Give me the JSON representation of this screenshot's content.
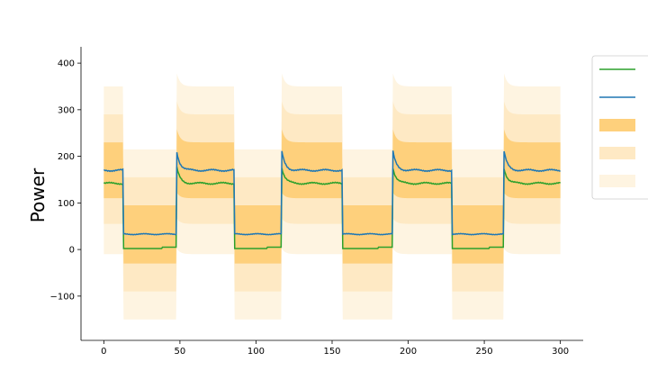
{
  "chart_data": {
    "type": "line",
    "title": "",
    "xlabel": "",
    "ylabel": "Power",
    "xlim": [
      -15,
      315
    ],
    "ylim": [
      -195,
      435
    ],
    "xticks": [
      0,
      50,
      100,
      150,
      200,
      250,
      300
    ],
    "yticks": [
      -100,
      0,
      100,
      200,
      300,
      400
    ],
    "grid": false,
    "legend": {
      "placement": "right",
      "entries": [
        {
          "kind": "line",
          "color": "#2ca02c",
          "label": ""
        },
        {
          "kind": "line",
          "color": "#1f77b4",
          "label": ""
        },
        {
          "kind": "band",
          "color": "#fed07c",
          "label": ""
        },
        {
          "kind": "band",
          "color": "#fee9c4",
          "label": ""
        },
        {
          "kind": "band",
          "color": "#fef4e1",
          "label": ""
        }
      ]
    },
    "x_domain": [
      0,
      300
    ],
    "segments": [
      {
        "x_start": 0,
        "x_end": 13,
        "state": "high"
      },
      {
        "x_start": 13,
        "x_end": 48,
        "state": "low"
      },
      {
        "x_start": 48,
        "x_end": 86,
        "state": "high"
      },
      {
        "x_start": 86,
        "x_end": 117,
        "state": "low"
      },
      {
        "x_start": 117,
        "x_end": 157,
        "state": "high"
      },
      {
        "x_start": 157,
        "x_end": 190,
        "state": "low"
      },
      {
        "x_start": 190,
        "x_end": 229,
        "state": "high"
      },
      {
        "x_start": 229,
        "x_end": 263,
        "state": "low"
      },
      {
        "x_start": 263,
        "x_end": 300,
        "state": "high"
      }
    ],
    "series": [
      {
        "color": "#2ca02c",
        "high_level": 142,
        "high_peak": 175,
        "low_level": 2
      },
      {
        "color": "#1f77b4",
        "high_level": 170,
        "high_peak": 210,
        "low_level": 33
      }
    ],
    "bands": [
      {
        "color": "#fef4e1",
        "high_upper": 350,
        "high_lower": -10,
        "low_upper": 215,
        "low_lower": -150
      },
      {
        "color": "#fee9c4",
        "high_upper": 290,
        "high_lower": 55,
        "low_upper": 155,
        "low_lower": -90
      },
      {
        "color": "#fed07c",
        "high_upper": 230,
        "high_lower": 110,
        "low_upper": 95,
        "low_lower": -30
      }
    ]
  }
}
